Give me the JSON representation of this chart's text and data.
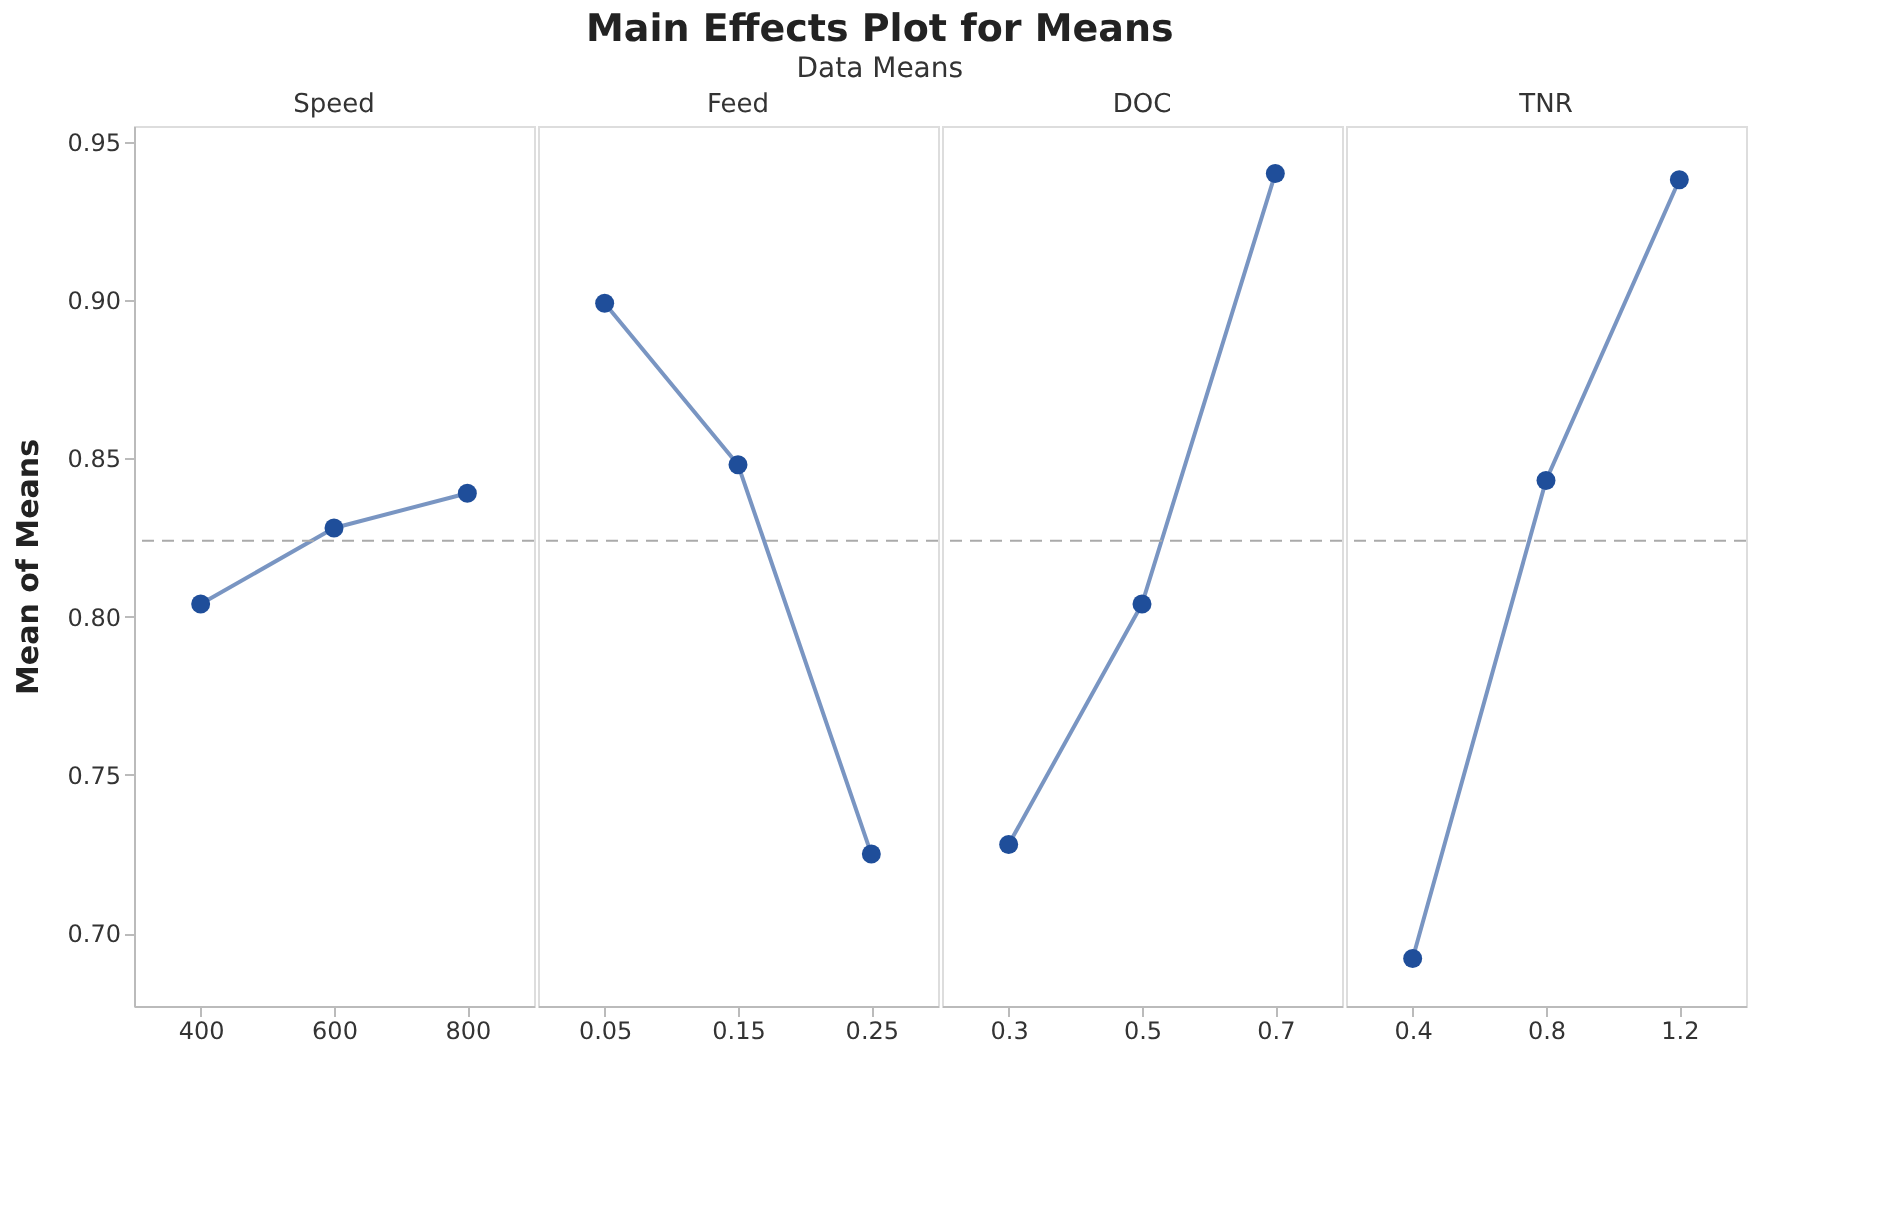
{
  "chart_data": {
    "type": "line",
    "title": "Main Effects Plot for Means",
    "subtitle": "Data Means",
    "ylabel": "Mean of Means",
    "categories": [
      "400",
      "600",
      "800",
      "0.05",
      "0.15",
      "0.25",
      "0.3",
      "0.5",
      "0.7",
      "0.4",
      "0.8",
      "1.2"
    ],
    "series": [
      {
        "color": "#1f4e9a",
        "values": [
          0.804,
          0.828,
          0.839,
          null,
          null,
          null,
          null,
          null,
          null,
          null,
          null,
          null
        ]
      },
      {
        "color": "#1f4e9a",
        "values": [
          null,
          null,
          null,
          0.899,
          0.848,
          0.725,
          null,
          null,
          null,
          null,
          null,
          null
        ]
      },
      {
        "color": "#1f4e9a",
        "values": [
          null,
          null,
          null,
          null,
          null,
          null,
          0.728,
          0.804,
          0.94,
          null,
          null,
          null
        ]
      },
      {
        "color": "#1f4e9a",
        "values": [
          null,
          null,
          null,
          null,
          null,
          null,
          null,
          null,
          null,
          0.692,
          0.843,
          0.938
        ]
      }
    ],
    "ylim": [
      0.677,
      0.955
    ],
    "yticks": [
      {
        "value": 0.7,
        "label": "0.70"
      },
      0.75,
      {
        "value": 0.8,
        "label": "0.80"
      },
      0.85,
      {
        "value": 0.9,
        "label": "0.90"
      },
      0.95
    ],
    "ref_lines": [
      {
        "axis": "y",
        "value": 0.824,
        "color": "#aaaaaa",
        "line_style": "dashed"
      }
    ],
    "annotations": [
      "Speed",
      "Feed",
      "DOC",
      "TNR"
    ],
    "marker": "circle",
    "line_style": "solid",
    "grid": false
  }
}
